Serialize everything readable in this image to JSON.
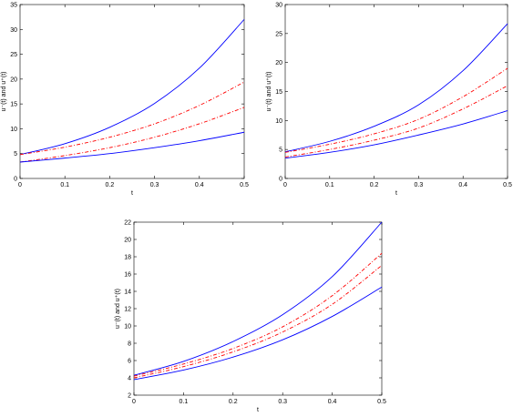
{
  "chart_data": [
    {
      "type": "line",
      "xlabel": "t",
      "ylabel": "u⁻(t) and u⁺(t)",
      "xlim": [
        0,
        0.5
      ],
      "ylim": [
        0,
        35
      ],
      "xticks": [
        "0",
        "0.1",
        "0.2",
        "0.3",
        "0.4",
        "0.5"
      ],
      "yticks": [
        "0",
        "5",
        "10",
        "15",
        "20",
        "25",
        "30",
        "35"
      ],
      "grid": false,
      "series": [
        {
          "style": "solid",
          "color": "#0000ff",
          "x": [
            0,
            0.1,
            0.2,
            0.3,
            0.4,
            0.5
          ],
          "y": [
            4.8,
            7.0,
            10.3,
            15.1,
            22.2,
            32.0
          ]
        },
        {
          "style": "dash-dot",
          "color": "#ff0000",
          "x": [
            0,
            0.1,
            0.2,
            0.3,
            0.4,
            0.5
          ],
          "y": [
            4.8,
            6.3,
            8.3,
            11.0,
            14.7,
            19.4
          ]
        },
        {
          "style": "dash-dot",
          "color": "#ff0000",
          "x": [
            0,
            0.1,
            0.2,
            0.3,
            0.4,
            0.5
          ],
          "y": [
            3.3,
            4.6,
            6.2,
            8.3,
            11.0,
            14.3
          ]
        },
        {
          "style": "solid",
          "color": "#0000ff",
          "x": [
            0,
            0.1,
            0.2,
            0.3,
            0.4,
            0.5
          ],
          "y": [
            3.3,
            4.1,
            5.0,
            6.2,
            7.6,
            9.3
          ]
        }
      ]
    },
    {
      "type": "line",
      "xlabel": "t",
      "ylabel": "u⁻(t) and u⁺(t)",
      "xlim": [
        0,
        0.5
      ],
      "ylim": [
        0,
        30
      ],
      "xticks": [
        "0",
        "0.1",
        "0.2",
        "0.3",
        "0.4",
        "0.5"
      ],
      "yticks": [
        "0",
        "5",
        "10",
        "15",
        "20",
        "25",
        "30"
      ],
      "grid": false,
      "series": [
        {
          "style": "solid",
          "color": "#0000ff",
          "x": [
            0,
            0.1,
            0.2,
            0.3,
            0.4,
            0.5
          ],
          "y": [
            4.6,
            6.4,
            9.0,
            12.7,
            18.6,
            26.7
          ]
        },
        {
          "style": "dash-dot",
          "color": "#ff0000",
          "x": [
            0,
            0.1,
            0.2,
            0.3,
            0.4,
            0.5
          ],
          "y": [
            4.5,
            5.9,
            7.7,
            10.2,
            14.1,
            19.0
          ]
        },
        {
          "style": "dash-dot",
          "color": "#ff0000",
          "x": [
            0,
            0.1,
            0.2,
            0.3,
            0.4,
            0.5
          ],
          "y": [
            3.7,
            5.0,
            6.6,
            8.7,
            12.0,
            16.0
          ]
        },
        {
          "style": "solid",
          "color": "#0000ff",
          "x": [
            0,
            0.1,
            0.2,
            0.3,
            0.4,
            0.5
          ],
          "y": [
            3.5,
            4.5,
            5.8,
            7.5,
            9.4,
            11.7
          ]
        }
      ]
    },
    {
      "type": "line",
      "xlabel": "t",
      "ylabel": "u⁻(t) and u⁺(t)",
      "xlim": [
        0,
        0.5
      ],
      "ylim": [
        2,
        22
      ],
      "xticks": [
        "0",
        "0.1",
        "0.2",
        "0.3",
        "0.4",
        "0.5"
      ],
      "yticks": [
        "2",
        "4",
        "6",
        "8",
        "10",
        "12",
        "14",
        "16",
        "18",
        "20",
        "22"
      ],
      "grid": false,
      "series": [
        {
          "style": "solid",
          "color": "#0000ff",
          "x": [
            0,
            0.1,
            0.2,
            0.3,
            0.4,
            0.5
          ],
          "y": [
            4.3,
            5.9,
            8.2,
            11.3,
            15.7,
            22.0
          ]
        },
        {
          "style": "dash-dot",
          "color": "#ff0000",
          "x": [
            0,
            0.1,
            0.2,
            0.3,
            0.4,
            0.5
          ],
          "y": [
            4.2,
            5.6,
            7.4,
            9.9,
            13.5,
            18.4
          ]
        },
        {
          "style": "dash-dot",
          "color": "#ff0000",
          "x": [
            0,
            0.1,
            0.2,
            0.3,
            0.4,
            0.5
          ],
          "y": [
            4.0,
            5.3,
            7.0,
            9.3,
            12.5,
            17.0
          ]
        },
        {
          "style": "solid",
          "color": "#0000ff",
          "x": [
            0,
            0.1,
            0.2,
            0.3,
            0.4,
            0.5
          ],
          "y": [
            3.8,
            4.9,
            6.4,
            8.4,
            11.1,
            14.5
          ]
        }
      ]
    }
  ]
}
